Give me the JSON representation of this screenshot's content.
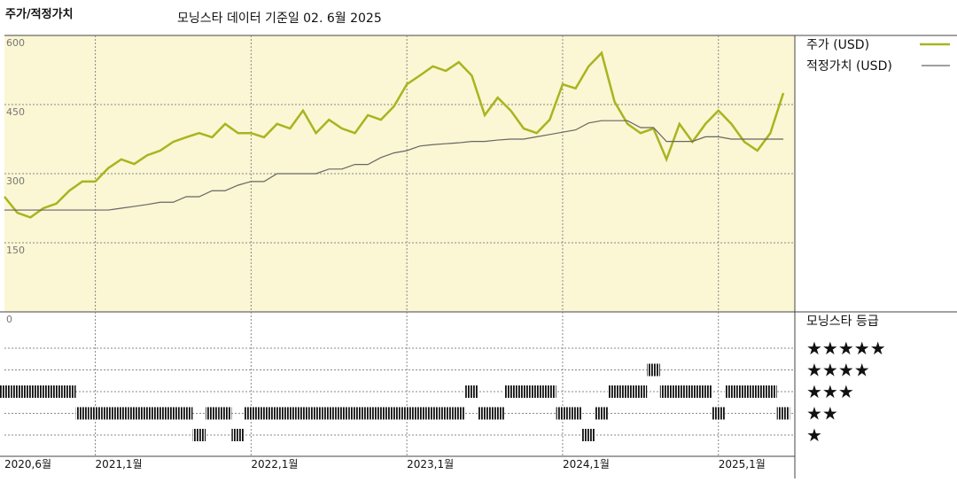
{
  "chart_data": {
    "type": "line",
    "title": "주가/적정가치",
    "subtitle": "모닝스타 데이터 기준일 02. 6월 2025",
    "x": [
      "2020-06",
      "2020-07",
      "2020-08",
      "2020-09",
      "2020-10",
      "2020-11",
      "2020-12",
      "2021-01",
      "2021-02",
      "2021-03",
      "2021-04",
      "2021-05",
      "2021-06",
      "2021-07",
      "2021-08",
      "2021-09",
      "2021-10",
      "2021-11",
      "2021-12",
      "2022-01",
      "2022-02",
      "2022-03",
      "2022-04",
      "2022-05",
      "2022-06",
      "2022-07",
      "2022-08",
      "2022-09",
      "2022-10",
      "2022-11",
      "2022-12",
      "2023-01",
      "2023-02",
      "2023-03",
      "2023-04",
      "2023-05",
      "2023-06",
      "2023-07",
      "2023-08",
      "2023-09",
      "2023-10",
      "2023-11",
      "2023-12",
      "2024-01",
      "2024-02",
      "2024-03",
      "2024-04",
      "2024-05",
      "2024-06",
      "2024-07",
      "2024-08",
      "2024-09",
      "2024-10",
      "2024-11",
      "2024-12",
      "2025-01",
      "2025-02",
      "2025-03",
      "2025-04",
      "2025-05",
      "2025-06"
    ],
    "series": [
      {
        "name": "주가 (USD)",
        "color": "#a9b420",
        "width": 2.5,
        "values": [
          250,
          215,
          205,
          225,
          235,
          263,
          283,
          283,
          312,
          331,
          321,
          340,
          350,
          369,
          379,
          388,
          379,
          408,
          388,
          388,
          379,
          408,
          398,
          437,
          388,
          417,
          398,
          388,
          427,
          417,
          446,
          494,
          513,
          533,
          523,
          542,
          513,
          427,
          465,
          437,
          398,
          388,
          417,
          494,
          485,
          533,
          562,
          456,
          408,
          388,
          398,
          331,
          408,
          369,
          408,
          437,
          408,
          369,
          350,
          388,
          475
        ]
      },
      {
        "name": "적정가치 (USD)",
        "color": "#666666",
        "width": 1.2,
        "values": [
          221,
          221,
          221,
          221,
          221,
          221,
          221,
          221,
          221,
          225,
          229,
          233,
          238,
          238,
          250,
          250,
          263,
          263,
          275,
          283,
          283,
          300,
          300,
          300,
          300,
          310,
          310,
          320,
          320,
          335,
          345,
          350,
          360,
          363,
          365,
          367,
          370,
          370,
          373,
          375,
          375,
          380,
          385,
          390,
          395,
          410,
          415,
          415,
          415,
          400,
          400,
          370,
          370,
          370,
          380,
          380,
          375,
          375,
          375,
          375,
          375
        ]
      }
    ],
    "ylim": [
      0,
      600
    ],
    "yticks": [
      0,
      150,
      300,
      450,
      600
    ],
    "xticks": [
      {
        "value": "2020-06",
        "label": "2020,6월"
      },
      {
        "value": "2021-01",
        "label": "2021,1월"
      },
      {
        "value": "2022-01",
        "label": "2022,1월"
      },
      {
        "value": "2023-01",
        "label": "2023,1월"
      },
      {
        "value": "2024-01",
        "label": "2024,1월"
      },
      {
        "value": "2025-01",
        "label": "2025,1월"
      }
    ],
    "grid": true,
    "background": "#fbf6d3",
    "rating": {
      "title": "모닝스타 등급",
      "levels": [
        {
          "value": 5,
          "label": "★★★★★"
        },
        {
          "value": 4,
          "label": "★★★★"
        },
        {
          "value": 3,
          "label": "★★★"
        },
        {
          "value": 2,
          "label": "★★"
        },
        {
          "value": 1,
          "label": "★"
        }
      ],
      "values": [
        3,
        3,
        3,
        3,
        3,
        3,
        2,
        2,
        2,
        2,
        2,
        2,
        2,
        2,
        2,
        1,
        2,
        2,
        1,
        2,
        2,
        2,
        2,
        2,
        2,
        2,
        2,
        2,
        2,
        2,
        2,
        2,
        2,
        2,
        2,
        2,
        3,
        2,
        2,
        3,
        3,
        3,
        3,
        2,
        2,
        1,
        2,
        3,
        3,
        3,
        4,
        3,
        3,
        3,
        3,
        2,
        3,
        3,
        3,
        3,
        2
      ]
    }
  }
}
